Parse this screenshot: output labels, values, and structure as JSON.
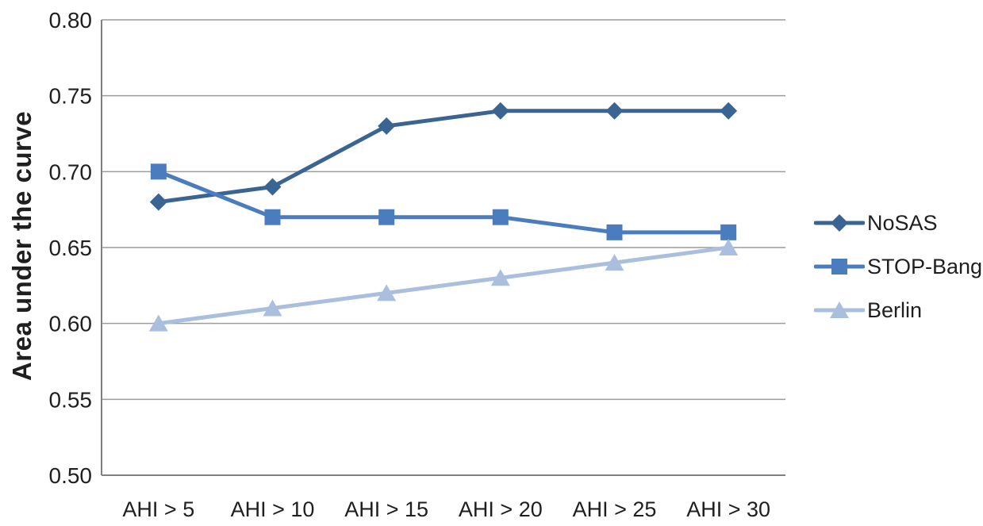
{
  "chart_data": {
    "type": "line",
    "title": "",
    "xlabel": "",
    "ylabel": "Area under the curve",
    "categories": [
      "AHI > 5",
      "AHI > 10",
      "AHI > 15",
      "AHI > 20",
      "AHI > 25",
      "AHI > 30"
    ],
    "series": [
      {
        "name": "NoSAS",
        "marker": "diamond",
        "color": "#3A6491",
        "values": [
          0.68,
          0.69,
          0.73,
          0.74,
          0.74,
          0.74
        ]
      },
      {
        "name": "STOP-Bang",
        "marker": "square",
        "color": "#4B7DBE",
        "values": [
          0.7,
          0.67,
          0.67,
          0.67,
          0.66,
          0.66
        ]
      },
      {
        "name": "Berlin",
        "marker": "triangle",
        "color": "#A9BFDD",
        "values": [
          0.6,
          0.61,
          0.62,
          0.63,
          0.64,
          0.65
        ]
      }
    ],
    "ylim": [
      0.5,
      0.8
    ],
    "ytick_step": 0.05,
    "ytick_labels": [
      "0.50",
      "0.55",
      "0.60",
      "0.65",
      "0.70",
      "0.75",
      "0.80"
    ],
    "grid": "horizontal",
    "legend_position": "right",
    "colors": {
      "gridline": "#9C9C9C",
      "axis": "#808080",
      "text": "#1F1F1F",
      "background": "#FFFFFF"
    }
  }
}
